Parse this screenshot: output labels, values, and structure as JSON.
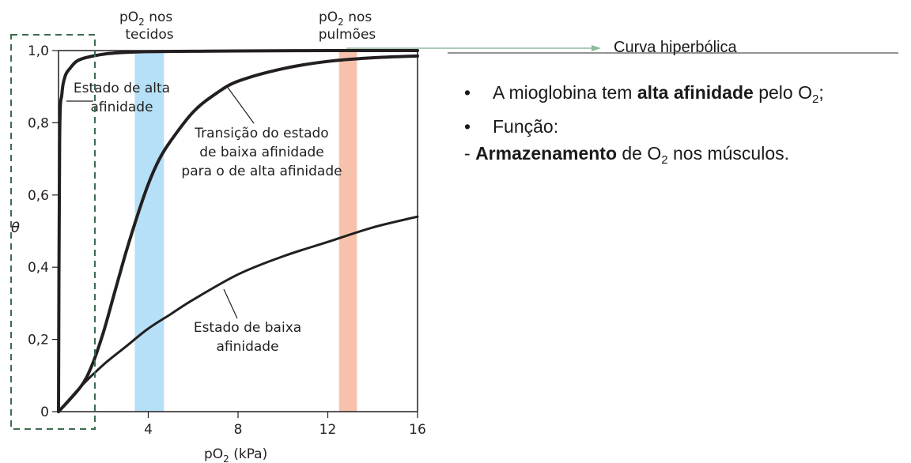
{
  "chart_data": {
    "type": "line",
    "xlabel": "pO",
    "xlabel_sub": "2",
    "xlabel_unit": " (kPa)",
    "ylabel": "θ",
    "xlim": [
      0,
      16
    ],
    "ylim": [
      0,
      1.0
    ],
    "x_ticks": [
      4,
      8,
      12,
      16
    ],
    "x_tick_labels": [
      "4",
      "8",
      "12",
      "16"
    ],
    "y_ticks": [
      0,
      0.2,
      0.4,
      0.6,
      0.8,
      1.0
    ],
    "y_tick_labels": [
      "0",
      "0,2",
      "0,4",
      "0,6",
      "0,8",
      "1,0"
    ],
    "series": [
      {
        "x": [
          0,
          0.05,
          0.15,
          0.3,
          0.5,
          0.8,
          1.2,
          2,
          3,
          4,
          6,
          8,
          12,
          16
        ],
        "y": [
          0,
          0.75,
          0.88,
          0.93,
          0.95,
          0.97,
          0.98,
          0.99,
          0.995,
          0.997,
          0.998,
          0.999,
          1.0,
          1.0
        ]
      },
      {
        "x": [
          0,
          1,
          1.5,
          2,
          2.5,
          3,
          3.5,
          4,
          4.5,
          5,
          6,
          7,
          8,
          10,
          12,
          14,
          16
        ],
        "y": [
          0,
          0.07,
          0.13,
          0.22,
          0.33,
          0.44,
          0.54,
          0.63,
          0.7,
          0.75,
          0.83,
          0.88,
          0.915,
          0.95,
          0.97,
          0.98,
          0.985
        ]
      },
      {
        "x": [
          0,
          1,
          2,
          3,
          4,
          5,
          6,
          8,
          10,
          12,
          14,
          16
        ],
        "y": [
          0,
          0.07,
          0.13,
          0.18,
          0.23,
          0.27,
          0.31,
          0.38,
          0.43,
          0.47,
          0.51,
          0.54
        ]
      }
    ],
    "bands": [
      {
        "x0": 3.4,
        "x1": 4.7,
        "color": "#b5e0f7"
      },
      {
        "x0": 12.5,
        "x1": 13.3,
        "color": "#f7c2ac"
      }
    ],
    "annotations": {
      "po2_tecidos_a": "pO",
      "po2_tecidos_sub": "2",
      "po2_tecidos_b": " nos",
      "po2_tecidos_c": "tecidos",
      "po2_pulmoes_a": "pO",
      "po2_pulmoes_sub": "2",
      "po2_pulmoes_b": " nos",
      "po2_pulmoes_c": "pulmões",
      "alta_1": "Estado de alta",
      "alta_2": "afinidade",
      "transicao_1": "Transição do estado",
      "transicao_2": "de baixa afinidade",
      "transicao_3": "para o de alta afinidade",
      "baixa_1": "Estado de baixa",
      "baixa_2": "afinidade"
    },
    "callout": "Curva hiperbólica"
  },
  "side": {
    "bullet_glyph": "•",
    "line1_a": "A mioglobina tem ",
    "line1_bold": "alta afinidade",
    "line1_b": " pelo O",
    "line1_sub": "2",
    "line1_c": ";",
    "line2": "Função:",
    "line3_dash": "- ",
    "line3_bold": "Armazenamento",
    "line3_a": " de O",
    "line3_sub": "2",
    "line3_b": " nos músculos."
  },
  "colors": {
    "curve": "#231f20",
    "callout_arrow": "#8fb89f",
    "dashed_box": "#3d6b4f"
  }
}
